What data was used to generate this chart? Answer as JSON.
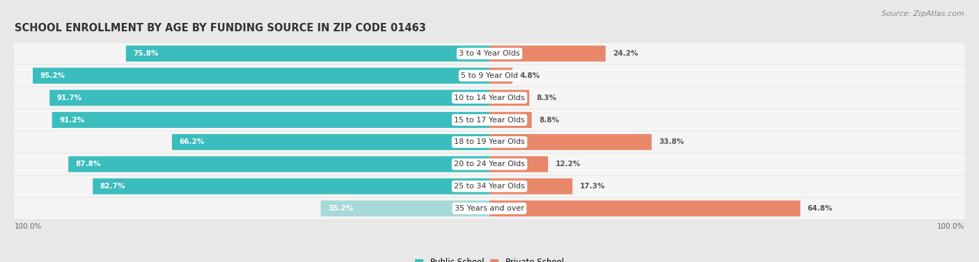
{
  "title": "SCHOOL ENROLLMENT BY AGE BY FUNDING SOURCE IN ZIP CODE 01463",
  "source": "Source: ZipAtlas.com",
  "categories": [
    "3 to 4 Year Olds",
    "5 to 9 Year Old",
    "10 to 14 Year Olds",
    "15 to 17 Year Olds",
    "18 to 19 Year Olds",
    "20 to 24 Year Olds",
    "25 to 34 Year Olds",
    "35 Years and over"
  ],
  "public_values": [
    75.8,
    95.2,
    91.7,
    91.2,
    66.2,
    87.8,
    82.7,
    35.2
  ],
  "private_values": [
    24.2,
    4.8,
    8.3,
    8.8,
    33.8,
    12.2,
    17.3,
    64.8
  ],
  "public_color": "#3BBDBD",
  "private_color": "#E8876A",
  "public_color_light": "#A8D8D8",
  "background_color": "#e8e8e8",
  "row_bg_color": "#f5f5f5",
  "title_fontsize": 10.5,
  "source_fontsize": 8,
  "cat_fontsize": 8,
  "value_fontsize": 7.5,
  "legend_fontsize": 8.5,
  "axis_label_left": "100.0%",
  "axis_label_right": "100.0%"
}
